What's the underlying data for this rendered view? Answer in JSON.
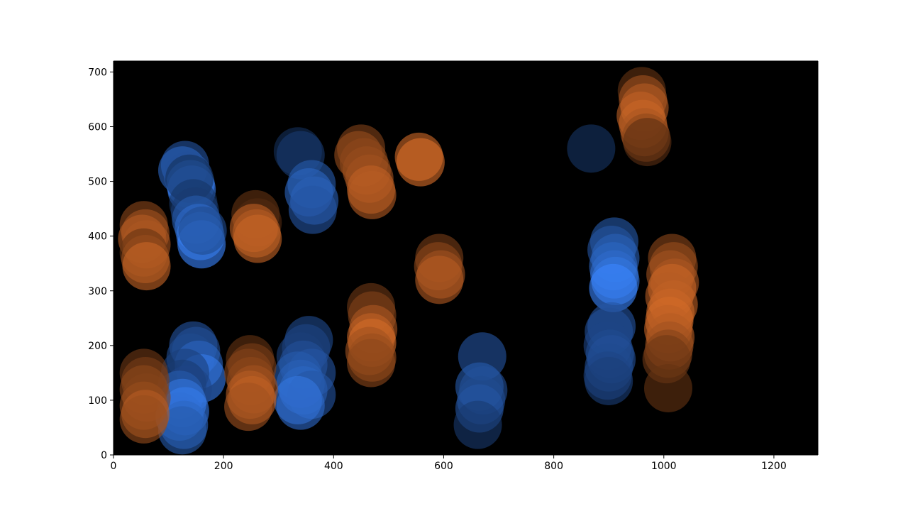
{
  "chart_data": {
    "type": "scatter",
    "title": "",
    "xlabel": "",
    "ylabel": "",
    "xlim": [
      0,
      1280
    ],
    "ylim": [
      0,
      720
    ],
    "xticks": [
      0,
      200,
      400,
      600,
      800,
      1000,
      1200
    ],
    "yticks": [
      0,
      100,
      200,
      300,
      400,
      500,
      600,
      700
    ],
    "plot_background": "#000000",
    "grid": false,
    "legend": "none",
    "marker": "circle",
    "marker_alpha": 0.6,
    "series": [
      {
        "color_light": "#3b86ff",
        "color_dark": "#0a1a33",
        "points": [
          {
            "x": 130,
            "y": 530,
            "s": 0.55
          },
          {
            "x": 125,
            "y": 520,
            "s": 0.7
          },
          {
            "x": 135,
            "y": 510,
            "s": 0.5
          },
          {
            "x": 140,
            "y": 495,
            "s": 0.85
          },
          {
            "x": 142,
            "y": 485,
            "s": 0.95
          },
          {
            "x": 138,
            "y": 505,
            "s": 0.2
          },
          {
            "x": 145,
            "y": 460,
            "s": 0.25
          },
          {
            "x": 148,
            "y": 445,
            "s": 0.3
          },
          {
            "x": 150,
            "y": 430,
            "s": 0.6
          },
          {
            "x": 155,
            "y": 415,
            "s": 0.75
          },
          {
            "x": 158,
            "y": 400,
            "s": 0.85
          },
          {
            "x": 160,
            "y": 385,
            "s": 1.0
          },
          {
            "x": 162,
            "y": 410,
            "s": 0.45
          },
          {
            "x": 335,
            "y": 555,
            "s": 0.2
          },
          {
            "x": 340,
            "y": 548,
            "s": 0.3
          },
          {
            "x": 360,
            "y": 495,
            "s": 0.6
          },
          {
            "x": 355,
            "y": 480,
            "s": 0.7
          },
          {
            "x": 365,
            "y": 465,
            "s": 0.65
          },
          {
            "x": 362,
            "y": 448,
            "s": 0.55
          },
          {
            "x": 868,
            "y": 560,
            "s": 0.25
          },
          {
            "x": 145,
            "y": 200,
            "s": 0.55
          },
          {
            "x": 150,
            "y": 190,
            "s": 0.5
          },
          {
            "x": 140,
            "y": 178,
            "s": 0.45
          },
          {
            "x": 155,
            "y": 165,
            "s": 0.7
          },
          {
            "x": 160,
            "y": 140,
            "s": 0.9
          },
          {
            "x": 130,
            "y": 150,
            "s": 0.35
          },
          {
            "x": 125,
            "y": 130,
            "s": 0.3
          },
          {
            "x": 135,
            "y": 120,
            "s": 0.4
          },
          {
            "x": 120,
            "y": 110,
            "s": 0.6
          },
          {
            "x": 125,
            "y": 95,
            "s": 0.85
          },
          {
            "x": 130,
            "y": 80,
            "s": 0.9
          },
          {
            "x": 120,
            "y": 70,
            "s": 0.8
          },
          {
            "x": 128,
            "y": 55,
            "s": 0.7
          },
          {
            "x": 125,
            "y": 45,
            "s": 0.6
          },
          {
            "x": 355,
            "y": 210,
            "s": 0.45
          },
          {
            "x": 350,
            "y": 195,
            "s": 0.4
          },
          {
            "x": 340,
            "y": 180,
            "s": 0.35
          },
          {
            "x": 345,
            "y": 165,
            "s": 0.5
          },
          {
            "x": 360,
            "y": 150,
            "s": 0.55
          },
          {
            "x": 335,
            "y": 145,
            "s": 0.6
          },
          {
            "x": 340,
            "y": 130,
            "s": 0.65
          },
          {
            "x": 345,
            "y": 118,
            "s": 0.7
          },
          {
            "x": 360,
            "y": 110,
            "s": 0.55
          },
          {
            "x": 335,
            "y": 100,
            "s": 0.85
          },
          {
            "x": 340,
            "y": 90,
            "s": 0.75
          },
          {
            "x": 670,
            "y": 180,
            "s": 0.55
          },
          {
            "x": 665,
            "y": 125,
            "s": 0.6
          },
          {
            "x": 672,
            "y": 118,
            "s": 0.5
          },
          {
            "x": 668,
            "y": 100,
            "s": 0.45
          },
          {
            "x": 665,
            "y": 85,
            "s": 0.55
          },
          {
            "x": 662,
            "y": 55,
            "s": 0.3
          },
          {
            "x": 910,
            "y": 390,
            "s": 0.6
          },
          {
            "x": 905,
            "y": 375,
            "s": 0.55
          },
          {
            "x": 912,
            "y": 360,
            "s": 0.65
          },
          {
            "x": 908,
            "y": 345,
            "s": 0.7
          },
          {
            "x": 910,
            "y": 330,
            "s": 0.75
          },
          {
            "x": 912,
            "y": 318,
            "s": 0.85
          },
          {
            "x": 908,
            "y": 305,
            "s": 1.0
          },
          {
            "x": 905,
            "y": 235,
            "s": 0.55
          },
          {
            "x": 900,
            "y": 225,
            "s": 0.5
          },
          {
            "x": 898,
            "y": 200,
            "s": 0.4
          },
          {
            "x": 902,
            "y": 185,
            "s": 0.45
          },
          {
            "x": 905,
            "y": 175,
            "s": 0.5
          },
          {
            "x": 900,
            "y": 160,
            "s": 0.45
          },
          {
            "x": 898,
            "y": 145,
            "s": 0.4
          },
          {
            "x": 900,
            "y": 135,
            "s": 0.35
          }
        ]
      },
      {
        "color_light": "#f07a2e",
        "color_dark": "#2a1508",
        "points": [
          {
            "x": 55,
            "y": 420,
            "s": 0.5
          },
          {
            "x": 58,
            "y": 405,
            "s": 0.6
          },
          {
            "x": 52,
            "y": 395,
            "s": 0.7
          },
          {
            "x": 60,
            "y": 385,
            "s": 0.65
          },
          {
            "x": 55,
            "y": 370,
            "s": 0.3
          },
          {
            "x": 58,
            "y": 358,
            "s": 0.55
          },
          {
            "x": 60,
            "y": 345,
            "s": 0.8
          },
          {
            "x": 258,
            "y": 440,
            "s": 0.3
          },
          {
            "x": 262,
            "y": 425,
            "s": 0.2
          },
          {
            "x": 255,
            "y": 415,
            "s": 0.75
          },
          {
            "x": 260,
            "y": 405,
            "s": 0.7
          },
          {
            "x": 262,
            "y": 395,
            "s": 0.8
          },
          {
            "x": 450,
            "y": 560,
            "s": 0.45
          },
          {
            "x": 445,
            "y": 548,
            "s": 0.55
          },
          {
            "x": 455,
            "y": 535,
            "s": 0.5
          },
          {
            "x": 460,
            "y": 520,
            "s": 0.55
          },
          {
            "x": 465,
            "y": 505,
            "s": 0.6
          },
          {
            "x": 468,
            "y": 485,
            "s": 0.75
          },
          {
            "x": 470,
            "y": 475,
            "s": 0.7
          },
          {
            "x": 555,
            "y": 545,
            "s": 0.85
          },
          {
            "x": 558,
            "y": 535,
            "s": 0.9
          },
          {
            "x": 592,
            "y": 360,
            "s": 0.4
          },
          {
            "x": 590,
            "y": 345,
            "s": 0.5
          },
          {
            "x": 595,
            "y": 330,
            "s": 0.6
          },
          {
            "x": 592,
            "y": 320,
            "s": 0.7
          },
          {
            "x": 960,
            "y": 665,
            "s": 0.3
          },
          {
            "x": 962,
            "y": 650,
            "s": 0.6
          },
          {
            "x": 965,
            "y": 635,
            "s": 0.7
          },
          {
            "x": 958,
            "y": 620,
            "s": 0.75
          },
          {
            "x": 962,
            "y": 605,
            "s": 0.8
          },
          {
            "x": 965,
            "y": 590,
            "s": 0.65
          },
          {
            "x": 968,
            "y": 580,
            "s": 0.5
          },
          {
            "x": 970,
            "y": 572,
            "s": 0.25
          },
          {
            "x": 1015,
            "y": 360,
            "s": 0.5
          },
          {
            "x": 1018,
            "y": 345,
            "s": 0.55
          },
          {
            "x": 1012,
            "y": 330,
            "s": 0.6
          },
          {
            "x": 1020,
            "y": 315,
            "s": 0.65
          },
          {
            "x": 1015,
            "y": 305,
            "s": 0.8
          },
          {
            "x": 1010,
            "y": 290,
            "s": 0.7
          },
          {
            "x": 1018,
            "y": 275,
            "s": 0.75
          },
          {
            "x": 1012,
            "y": 260,
            "s": 0.8
          },
          {
            "x": 1010,
            "y": 245,
            "s": 0.85
          },
          {
            "x": 1008,
            "y": 230,
            "s": 0.75
          },
          {
            "x": 1012,
            "y": 215,
            "s": 0.7
          },
          {
            "x": 1010,
            "y": 200,
            "s": 0.6
          },
          {
            "x": 1008,
            "y": 185,
            "s": 0.45
          },
          {
            "x": 1005,
            "y": 175,
            "s": 0.35
          },
          {
            "x": 1008,
            "y": 122,
            "s": 0.3
          },
          {
            "x": 55,
            "y": 150,
            "s": 0.35
          },
          {
            "x": 58,
            "y": 135,
            "s": 0.4
          },
          {
            "x": 55,
            "y": 120,
            "s": 0.5
          },
          {
            "x": 60,
            "y": 105,
            "s": 0.45
          },
          {
            "x": 55,
            "y": 90,
            "s": 0.55
          },
          {
            "x": 58,
            "y": 75,
            "s": 0.7
          },
          {
            "x": 55,
            "y": 65,
            "s": 0.55
          },
          {
            "x": 248,
            "y": 175,
            "s": 0.3
          },
          {
            "x": 252,
            "y": 160,
            "s": 0.4
          },
          {
            "x": 245,
            "y": 150,
            "s": 0.45
          },
          {
            "x": 250,
            "y": 135,
            "s": 0.5
          },
          {
            "x": 255,
            "y": 120,
            "s": 0.6
          },
          {
            "x": 248,
            "y": 110,
            "s": 0.7
          },
          {
            "x": 252,
            "y": 100,
            "s": 0.75
          },
          {
            "x": 245,
            "y": 88,
            "s": 0.6
          },
          {
            "x": 468,
            "y": 270,
            "s": 0.35
          },
          {
            "x": 470,
            "y": 255,
            "s": 0.45
          },
          {
            "x": 472,
            "y": 230,
            "s": 0.65
          },
          {
            "x": 468,
            "y": 215,
            "s": 0.75
          },
          {
            "x": 470,
            "y": 205,
            "s": 0.85
          },
          {
            "x": 465,
            "y": 190,
            "s": 0.6
          },
          {
            "x": 470,
            "y": 178,
            "s": 0.55
          },
          {
            "x": 468,
            "y": 168,
            "s": 0.5
          }
        ]
      }
    ]
  }
}
